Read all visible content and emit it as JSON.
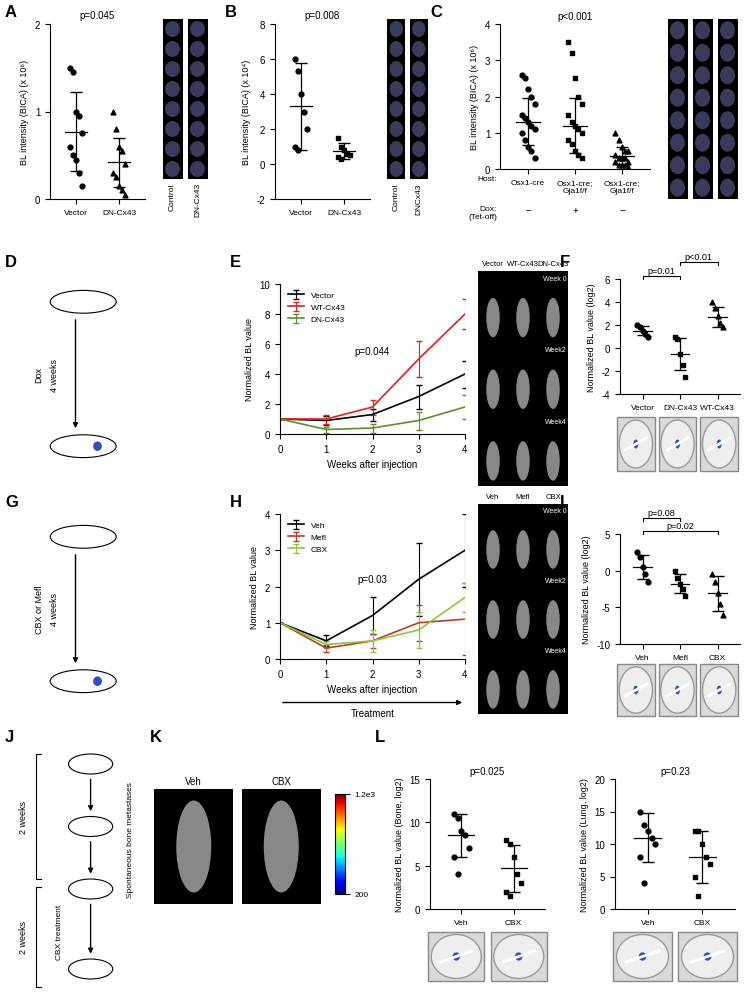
{
  "chart_data": [
    {
      "panel": "A",
      "type": "dot",
      "categories": [
        "Vector",
        "DN-Cx43"
      ],
      "markers": [
        "circle",
        "triangle"
      ],
      "values": [
        [
          1.5,
          1.45,
          1.0,
          0.95,
          0.75,
          0.6,
          0.5,
          0.45,
          0.3,
          0.15
        ],
        [
          1.0,
          0.8,
          0.6,
          0.55,
          0.4,
          0.3,
          0.25,
          0.15,
          0.1,
          0.05
        ]
      ],
      "means": [
        0.77,
        0.42
      ],
      "errors": [
        0.45,
        0.28
      ],
      "y_label": "BL intensity (BICA) (x 10⁶)",
      "ylim": [
        0,
        2
      ],
      "yticks": [
        0,
        1,
        2
      ],
      "annotations": [
        "p=0.045"
      ],
      "image_labels": [
        "Control",
        "DN-Cx43"
      ]
    },
    {
      "panel": "B",
      "type": "dot",
      "categories": [
        "Vector",
        "DN-Cx43"
      ],
      "markers": [
        "circle",
        "square"
      ],
      "values": [
        [
          6.0,
          5.3,
          4.0,
          3.0,
          2.0,
          1.0,
          0.8
        ],
        [
          1.5,
          1.0,
          0.8,
          0.6,
          0.5,
          0.4,
          0.3
        ]
      ],
      "means": [
        3.3,
        0.73
      ],
      "errors": [
        2.5,
        0.45
      ],
      "y_label": "BL intensity (BICA) (x 10⁴)",
      "ylim": [
        -2,
        8
      ],
      "yticks": [
        -2,
        0,
        2,
        4,
        6,
        8
      ],
      "annotations": [
        "p=0.008"
      ],
      "image_labels": [
        "Control",
        "DNCx43"
      ]
    },
    {
      "panel": "C",
      "type": "dot",
      "categories": [
        "Osx1-cre",
        "Osx1-cre;\nGja1f/f",
        "Osx1-cre;\nGja1f/f"
      ],
      "markers": [
        "circle",
        "square",
        "triangle"
      ],
      "values": [
        [
          2.6,
          2.5,
          2.2,
          2.0,
          1.8,
          1.5,
          1.4,
          1.3,
          1.2,
          1.1,
          1.0,
          0.8,
          0.6,
          0.5,
          0.3
        ],
        [
          3.5,
          3.2,
          2.5,
          2.0,
          1.8,
          1.5,
          1.3,
          1.2,
          1.1,
          1.0,
          0.8,
          0.7,
          0.5,
          0.4,
          0.3
        ],
        [
          1.0,
          0.8,
          0.6,
          0.5,
          0.5,
          0.4,
          0.3,
          0.3,
          0.3,
          0.2,
          0.2,
          0.1,
          0.1,
          0.1,
          0.05
        ]
      ],
      "means": [
        1.3,
        1.2,
        0.35
      ],
      "errors": [
        0.65,
        0.75,
        0.25
      ],
      "y_label": "BL intensity (BICA) (x 10⁶)",
      "ylim": [
        0,
        4
      ],
      "yticks": [
        0,
        1,
        2,
        3,
        4
      ],
      "host_label": "Host:",
      "dox_label": "Dox:\n(Tet-off)",
      "dox": [
        "−",
        "+",
        "−"
      ],
      "annotations": [
        "p<0.001"
      ]
    },
    {
      "panel": "E",
      "type": "line",
      "x": [
        0,
        1,
        2,
        3,
        4
      ],
      "xlim": [
        0,
        4
      ],
      "xticks": [
        0,
        1,
        2,
        3,
        4
      ],
      "ylim": [
        0,
        10
      ],
      "yticks": [
        0,
        2,
        4,
        6,
        8,
        10
      ],
      "x_label": "Weeks after injection",
      "y_label": "Normalized BL value",
      "legend": "upper left",
      "series": [
        {
          "name": "Vector",
          "color": "#000000",
          "values": [
            1,
            0.9,
            1.3,
            2.5,
            4.0
          ],
          "errors": [
            0,
            0.3,
            0.4,
            0.8,
            0.9
          ]
        },
        {
          "name": "WT-Cx43",
          "color": "#e0201b",
          "values": [
            1,
            1.0,
            1.8,
            5.0,
            8.0
          ],
          "errors": [
            0,
            0.3,
            0.5,
            1.2,
            1.0
          ]
        },
        {
          "name": "DN-Cx43",
          "color": "#5a8f29",
          "values": [
            1,
            0.3,
            0.4,
            0.9,
            1.8
          ],
          "errors": [
            0,
            0.2,
            0.3,
            0.6,
            0.8
          ]
        }
      ],
      "annotations": [
        "p=0.044"
      ],
      "image_columns": [
        "Vector",
        "WT-Cx43",
        "DN-Cx43"
      ],
      "image_rows": [
        "Week 0",
        "Week2",
        "Week4"
      ]
    },
    {
      "panel": "F",
      "type": "dot",
      "categories": [
        "Vector",
        "DN-Cx43",
        "WT-Cx43"
      ],
      "markers": [
        "circle",
        "square",
        "triangle"
      ],
      "values": [
        [
          2.0,
          1.8,
          1.5,
          1.2,
          1.0
        ],
        [
          1.0,
          0.8,
          -0.5,
          -1.5,
          -2.5
        ],
        [
          4.0,
          3.5,
          2.8,
          2.2,
          1.8
        ]
      ],
      "means": [
        1.5,
        -0.5,
        2.7
      ],
      "errors": [
        0.4,
        1.4,
        0.9
      ],
      "y_label": "Normalized BL value (log2)",
      "ylim": [
        -4,
        6
      ],
      "yticks": [
        -4,
        -2,
        0,
        2,
        4,
        6
      ],
      "comparisons": [
        {
          "groups": [
            0,
            1
          ],
          "text": "p=0.01"
        },
        {
          "groups": [
            1,
            2
          ],
          "text": "p<0.01"
        }
      ]
    },
    {
      "panel": "H",
      "type": "line",
      "x": [
        0,
        1,
        2,
        3,
        4
      ],
      "xlim": [
        0,
        4
      ],
      "xticks": [
        0,
        1,
        2,
        3,
        4
      ],
      "ylim": [
        0,
        4
      ],
      "yticks": [
        0,
        1,
        2,
        3,
        4
      ],
      "x_label": "Weeks after injection",
      "y_label": "Normalized BL value",
      "legend": "upper left",
      "arrow_label": "Treatment",
      "series": [
        {
          "name": "Veh",
          "color": "#000000",
          "values": [
            1,
            0.5,
            1.2,
            2.2,
            3.0
          ],
          "errors": [
            0,
            0.15,
            0.5,
            1.0,
            1.0
          ]
        },
        {
          "name": "Mefl",
          "color": "#c0392b",
          "values": [
            1,
            0.3,
            0.5,
            1.0,
            1.1
          ],
          "errors": [
            0,
            0.1,
            0.2,
            0.5,
            1.0
          ]
        },
        {
          "name": "CBX",
          "color": "#8cc63f",
          "values": [
            1,
            0.4,
            0.5,
            0.8,
            1.7
          ],
          "errors": [
            0,
            0.1,
            0.3,
            0.5,
            0.4
          ]
        }
      ],
      "annotations": [
        "p=0.03"
      ],
      "image_columns": [
        "Veh",
        "Mefl",
        "CBX"
      ],
      "image_rows": [
        "Week 0",
        "Week2",
        "Week4"
      ]
    },
    {
      "panel": "I",
      "type": "dot",
      "categories": [
        "Veh",
        "Mefl",
        "CBX"
      ],
      "markers": [
        "circle",
        "square",
        "triangle"
      ],
      "values": [
        [
          2.5,
          1.8,
          0.5,
          -0.5,
          -1.5
        ],
        [
          0,
          -1,
          -1.8,
          -2.5,
          -3.5
        ],
        [
          -0.5,
          -1.5,
          -3,
          -4.5,
          -6
        ]
      ],
      "means": [
        0.5,
        -1.8,
        -3.1
      ],
      "errors": [
        1.7,
        1.3,
        2.4
      ],
      "y_label": "Normalized BL value (log2)",
      "ylim": [
        -10,
        5
      ],
      "yticks": [
        -10,
        -5,
        0,
        5
      ],
      "comparisons": [
        {
          "groups": [
            0,
            2
          ],
          "text": "p=0.02"
        },
        {
          "groups": [
            0,
            1
          ],
          "text": "p=0.08"
        }
      ]
    },
    {
      "panel": "K",
      "type": "image",
      "image_labels": [
        "Veh",
        "CBX"
      ],
      "colorbar": {
        "range": [
          200,
          1200
        ],
        "ticks": [
          {
            "value": 1200,
            "label": "1.2e3"
          },
          200
        ]
      }
    },
    {
      "panel": "L",
      "type": "dot",
      "categories": [
        "Veh",
        "CBX"
      ],
      "markers": [
        "circle",
        "square"
      ],
      "values": [
        [
          11,
          10.5,
          9,
          8.5,
          7,
          6,
          4
        ],
        [
          8,
          7.5,
          6,
          4,
          3,
          2,
          1.5
        ]
      ],
      "means": [
        8.5,
        4.7
      ],
      "errors": [
        2.5,
        2.7
      ],
      "y_label": "Normalized BL value (Bone, log2)",
      "ylim": [
        0,
        15
      ],
      "yticks": [
        0,
        5,
        10,
        15
      ],
      "annotations": [
        "p=0.025"
      ]
    },
    {
      "type": "dot",
      "categories": [
        "Veh",
        "CBX"
      ],
      "markers": [
        "circle",
        "square"
      ],
      "values": [
        [
          15,
          13,
          12,
          11,
          10,
          8,
          4
        ],
        [
          12,
          12,
          10,
          8,
          7,
          5,
          2
        ]
      ],
      "means": [
        11,
        8
      ],
      "errors": [
        3.8,
        4.0
      ],
      "y_label": "Normalized BL value (Lung, log2)",
      "ylim": [
        0,
        20
      ],
      "yticks": [
        0,
        5,
        10,
        15,
        20
      ],
      "annotations": [
        "p=0.23"
      ]
    }
  ],
  "diagrams": [
    {
      "panel": "D",
      "texts": [
        "Dox",
        "4 weeks"
      ]
    },
    {
      "panel": "G",
      "texts": [
        "CBX or Mefl",
        "4 weeks"
      ]
    },
    {
      "panel": "J",
      "texts": [
        "2 weeks",
        "2 weeks",
        "CBX treatment",
        "Spontaneous bone metastases"
      ]
    }
  ]
}
